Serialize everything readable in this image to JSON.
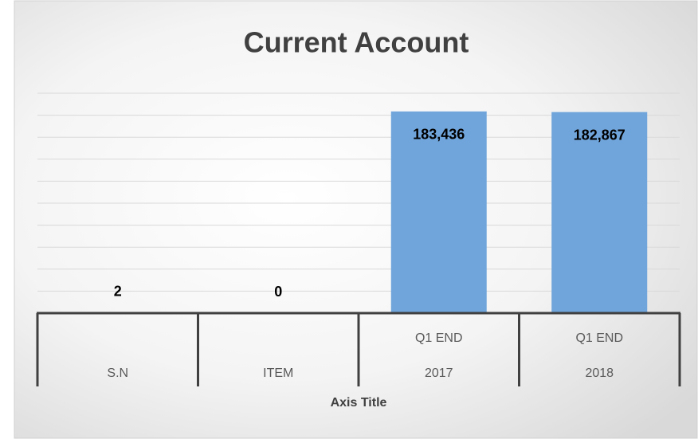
{
  "chart_data": {
    "type": "bar",
    "title": "Current Account",
    "categories": [
      "S.N",
      "ITEM",
      "2017",
      "2018"
    ],
    "category_groups": [
      null,
      null,
      "Q1 END",
      "Q1 END"
    ],
    "values": [
      2,
      0,
      183436,
      182867
    ],
    "value_labels": [
      "2",
      "0",
      "183,436",
      "182,867"
    ],
    "color": "#70a5db",
    "x_label": "Axis Title",
    "ylim": [
      0,
      200000
    ],
    "yticks": [
      0,
      20000,
      40000,
      60000,
      80000,
      100000,
      120000,
      140000,
      160000,
      180000,
      200000
    ],
    "grid": true
  }
}
